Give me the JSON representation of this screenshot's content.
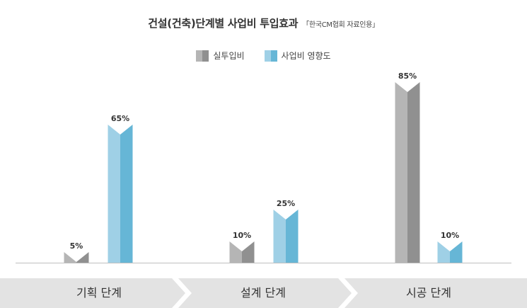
{
  "title": {
    "main": "건설(건축)단계별 사업비 투입효과",
    "source": "「한국CM협회 자료인용」"
  },
  "legend": [
    {
      "label": "실투입비",
      "color": "#a0a0a0"
    },
    {
      "label": "사업비 영향도",
      "color": "#6fbbda"
    }
  ],
  "colors": {
    "gray_light": "#b5b5b5",
    "gray_dark": "#909090",
    "blue_light": "#9fd0e6",
    "blue_dark": "#66b6d6",
    "band": "#e3e3e3"
  },
  "chart_data": {
    "type": "bar",
    "categories": [
      "기획 단계",
      "설계 단계",
      "시공 단계"
    ],
    "series": [
      {
        "name": "실투입비",
        "values": [
          5,
          10,
          85
        ]
      },
      {
        "name": "사업비 영향도",
        "values": [
          65,
          25,
          10
        ]
      }
    ],
    "value_labels": [
      [
        "5%",
        "10%",
        "85%"
      ],
      [
        "65%",
        "25%",
        "10%"
      ]
    ],
    "ylim": [
      0,
      100
    ],
    "grid": false,
    "legend_position": "top"
  }
}
